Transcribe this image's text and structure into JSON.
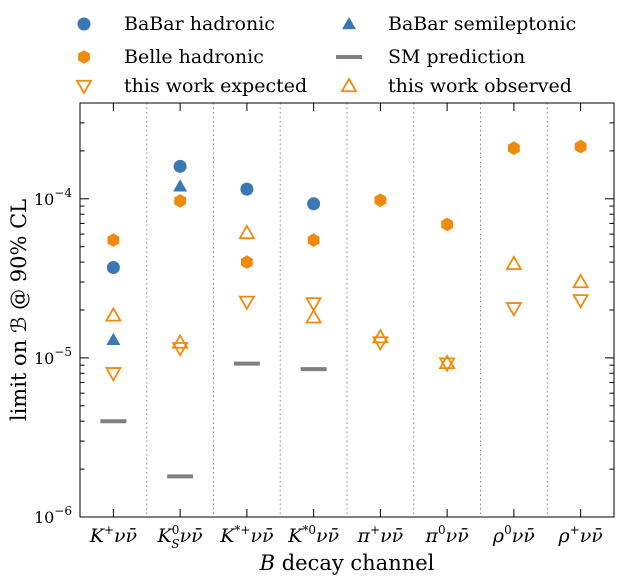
{
  "chart_data": {
    "type": "scatter",
    "xlabel": "B decay channel",
    "ylabel": "limit on ℬ @ 90% CL",
    "yscale": "log",
    "ylim": [
      1e-06,
      0.0004
    ],
    "ytick_labels": [
      {
        "value": 1e-06,
        "base": "10",
        "exp": "−6"
      },
      {
        "value": 1e-05,
        "base": "10",
        "exp": "−5"
      },
      {
        "value": 0.0001,
        "base": "10",
        "exp": "−4"
      }
    ],
    "categories": [
      "K⁺νν̄",
      "K_S⁰νν̄",
      "K*⁺νν̄",
      "K*⁰νν̄",
      "π⁺νν̄",
      "π⁰νν̄",
      "ρ⁰νν̄",
      "ρ⁺νν̄"
    ],
    "category_parts": [
      {
        "base": "K",
        "sup": "+",
        "sub": "",
        "tail": "νν̄"
      },
      {
        "base": "K",
        "sup": "0",
        "sub": "S",
        "tail": "νν̄"
      },
      {
        "base": "K",
        "sup": "*+",
        "sub": "",
        "tail": "νν̄"
      },
      {
        "base": "K",
        "sup": "*0",
        "sub": "",
        "tail": "νν̄"
      },
      {
        "base": "π",
        "sup": "+",
        "sub": "",
        "tail": "νν̄"
      },
      {
        "base": "π",
        "sup": "0",
        "sub": "",
        "tail": "νν̄"
      },
      {
        "base": "ρ",
        "sup": "0",
        "sub": "",
        "tail": "νν̄"
      },
      {
        "base": "ρ",
        "sup": "+",
        "sub": "",
        "tail": "νν̄"
      }
    ],
    "series": [
      {
        "name": "BaBar hadronic",
        "marker": "circle",
        "color": "#3a78b5",
        "values": [
          3.7e-05,
          0.00016,
          0.000115,
          9.3e-05,
          null,
          null,
          null,
          null
        ]
      },
      {
        "name": "Belle hadronic",
        "marker": "hexagon",
        "color": "#f08a0c",
        "values": [
          5.5e-05,
          9.7e-05,
          4e-05,
          5.5e-05,
          9.8e-05,
          6.9e-05,
          0.000208,
          0.000213
        ]
      },
      {
        "name": "this work expected",
        "marker": "triangle-down-open",
        "color": "#f08a0c",
        "values": [
          8e-06,
          1.15e-05,
          2.25e-05,
          2.2e-05,
          1.25e-05,
          9.2e-06,
          2.05e-05,
          2.3e-05
        ]
      },
      {
        "name": "BaBar semileptonic",
        "marker": "triangle-up",
        "color": "#3a78b5",
        "values": [
          1.3e-05,
          0.00012,
          null,
          null,
          null,
          null,
          null,
          null
        ]
      },
      {
        "name": "SM prediction",
        "marker": "hline",
        "color": "#808080",
        "values": [
          4e-06,
          1.8e-06,
          9.2e-06,
          8.5e-06,
          null,
          null,
          null,
          null
        ]
      },
      {
        "name": "this work observed",
        "marker": "triangle-up-open",
        "color": "#f08a0c",
        "values": [
          1.85e-05,
          1.25e-05,
          6.1e-05,
          1.8e-05,
          1.35e-05,
          9.3e-06,
          3.9e-05,
          3e-05
        ]
      }
    ],
    "legend_position": "top"
  }
}
